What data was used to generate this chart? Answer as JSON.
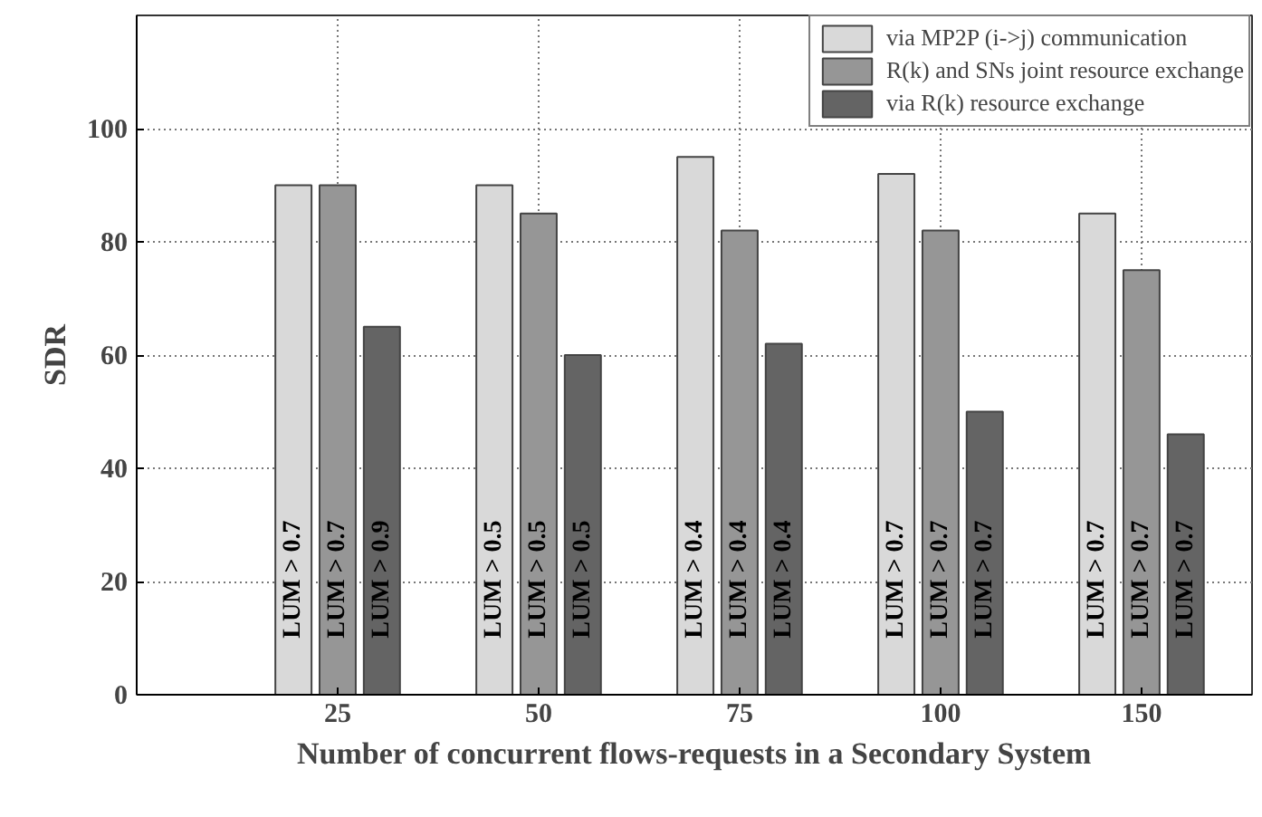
{
  "chart_data": {
    "type": "bar",
    "xlabel": "Number of concurrent flows-requests in a Secondary System",
    "ylabel": "SDR",
    "categories": [
      "25",
      "50",
      "75",
      "100",
      "150"
    ],
    "series": [
      {
        "name": "via MP2P (i->j) communication",
        "color": "#d9d9d9",
        "values": [
          90,
          90,
          95,
          92,
          85
        ]
      },
      {
        "name": "R(k) and SNs joint resource exchange",
        "color": "#969696",
        "values": [
          90,
          85,
          82,
          82,
          75
        ]
      },
      {
        "name": "via R(k) resource exchange",
        "color": "#646464",
        "values": [
          65,
          60,
          62,
          50,
          46
        ]
      }
    ],
    "ylim": [
      0,
      120
    ],
    "yticks": [
      0,
      20,
      40,
      60,
      80,
      100
    ],
    "grid": true,
    "legend": "top right",
    "annotations": [
      "LUM > 0.7",
      "LUM > 0.7",
      "LUM > 0.9",
      "LUM > 0.5",
      "LUM > 0.5",
      "LUM > 0.5",
      "LUM > 0.4",
      "LUM > 0.4",
      "LUM > 0.4",
      "LUM > 0.7",
      "LUM > 0.7",
      "LUM > 0.7",
      "LUM > 0.7",
      "LUM > 0.7",
      "LUM > 0.7"
    ]
  }
}
